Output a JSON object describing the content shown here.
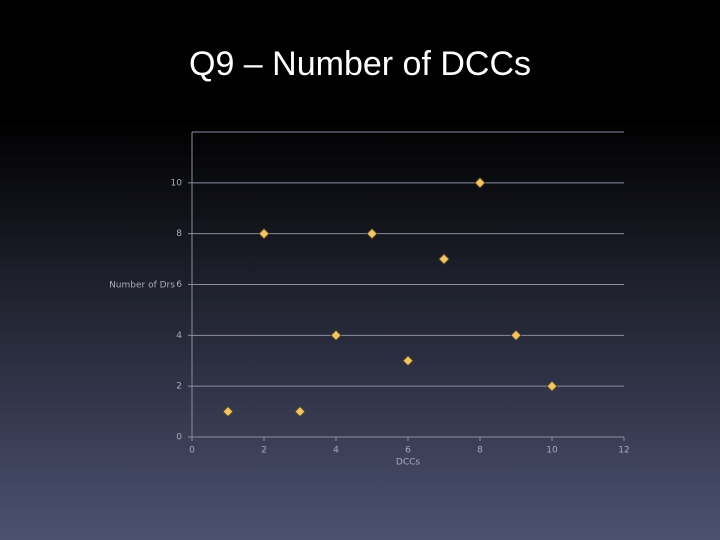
{
  "chart_data": {
    "type": "scatter",
    "title": "Q9 – Number of DCCs",
    "x_label": "DCCs",
    "y_label": "Number of Drs",
    "x": [
      1,
      2,
      3,
      4,
      5,
      6,
      7,
      8,
      9,
      10
    ],
    "values": [
      1,
      8,
      1,
      4,
      8,
      3,
      7,
      10,
      4,
      2
    ],
    "color": "#f2c46a",
    "xlim": [
      0,
      12
    ],
    "xticks": [
      0,
      2,
      4,
      6,
      8,
      10,
      12
    ],
    "ylim": [
      0,
      12
    ],
    "yticks": [
      0,
      2,
      4,
      6,
      8,
      10
    ],
    "grid": true
  }
}
